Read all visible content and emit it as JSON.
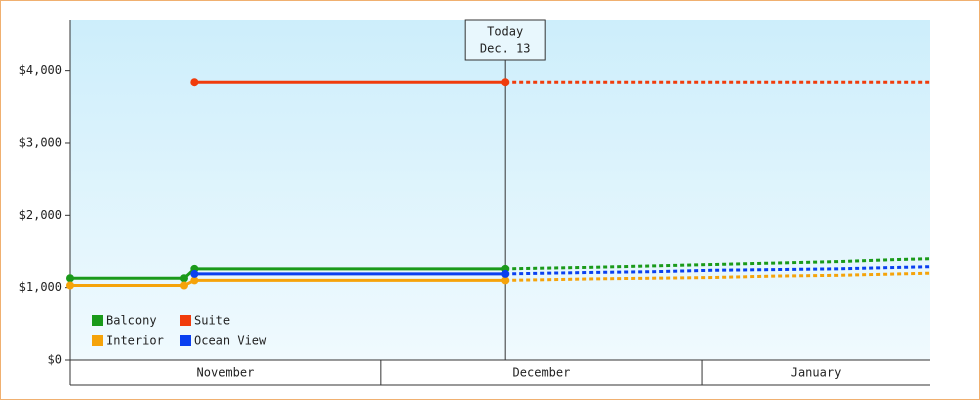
{
  "chart_data": {
    "type": "line",
    "annotation": {
      "title": "Today",
      "date": "Dec. 13",
      "x": 42
    },
    "x": [
      0,
      11,
      12,
      42
    ],
    "forecast_x": [
      42,
      50,
      56,
      62,
      68,
      74,
      80,
      83
    ],
    "xlim": [
      0,
      83
    ],
    "month_bands": [
      {
        "label": "November",
        "start": 0,
        "end": 30
      },
      {
        "label": "December",
        "start": 30,
        "end": 61
      },
      {
        "label": "January",
        "start": 61,
        "end": 83
      }
    ],
    "ylim": [
      0,
      4700
    ],
    "yticks": [
      {
        "value": 0,
        "label": "$0"
      },
      {
        "value": 1000,
        "label": "$1,000"
      },
      {
        "value": 2000,
        "label": "$2,000"
      },
      {
        "value": 3000,
        "label": "$3,000"
      },
      {
        "value": 4000,
        "label": "$4,000"
      }
    ],
    "legend": "bottom-left",
    "series": [
      {
        "name": "Balcony",
        "color": "#1a9a1a",
        "values": [
          1130,
          1130,
          1260,
          1260
        ],
        "forecast": [
          1260,
          1280,
          1300,
          1320,
          1340,
          1360,
          1390,
          1400
        ]
      },
      {
        "name": "Suite",
        "color": "#f03c0c",
        "values": [
          null,
          null,
          3840,
          3840
        ],
        "forecast": [
          3840,
          3840,
          3840,
          3840,
          3840,
          3840,
          3840,
          3840
        ]
      },
      {
        "name": "Interior",
        "color": "#f5a30a",
        "values": [
          1030,
          1030,
          1100,
          1100
        ],
        "forecast": [
          1100,
          1120,
          1130,
          1140,
          1160,
          1170,
          1190,
          1200
        ]
      },
      {
        "name": "Ocean View",
        "color": "#0a40f0",
        "values": [
          null,
          null,
          1190,
          1190
        ],
        "forecast": [
          1190,
          1210,
          1220,
          1240,
          1250,
          1260,
          1280,
          1290
        ]
      }
    ]
  }
}
